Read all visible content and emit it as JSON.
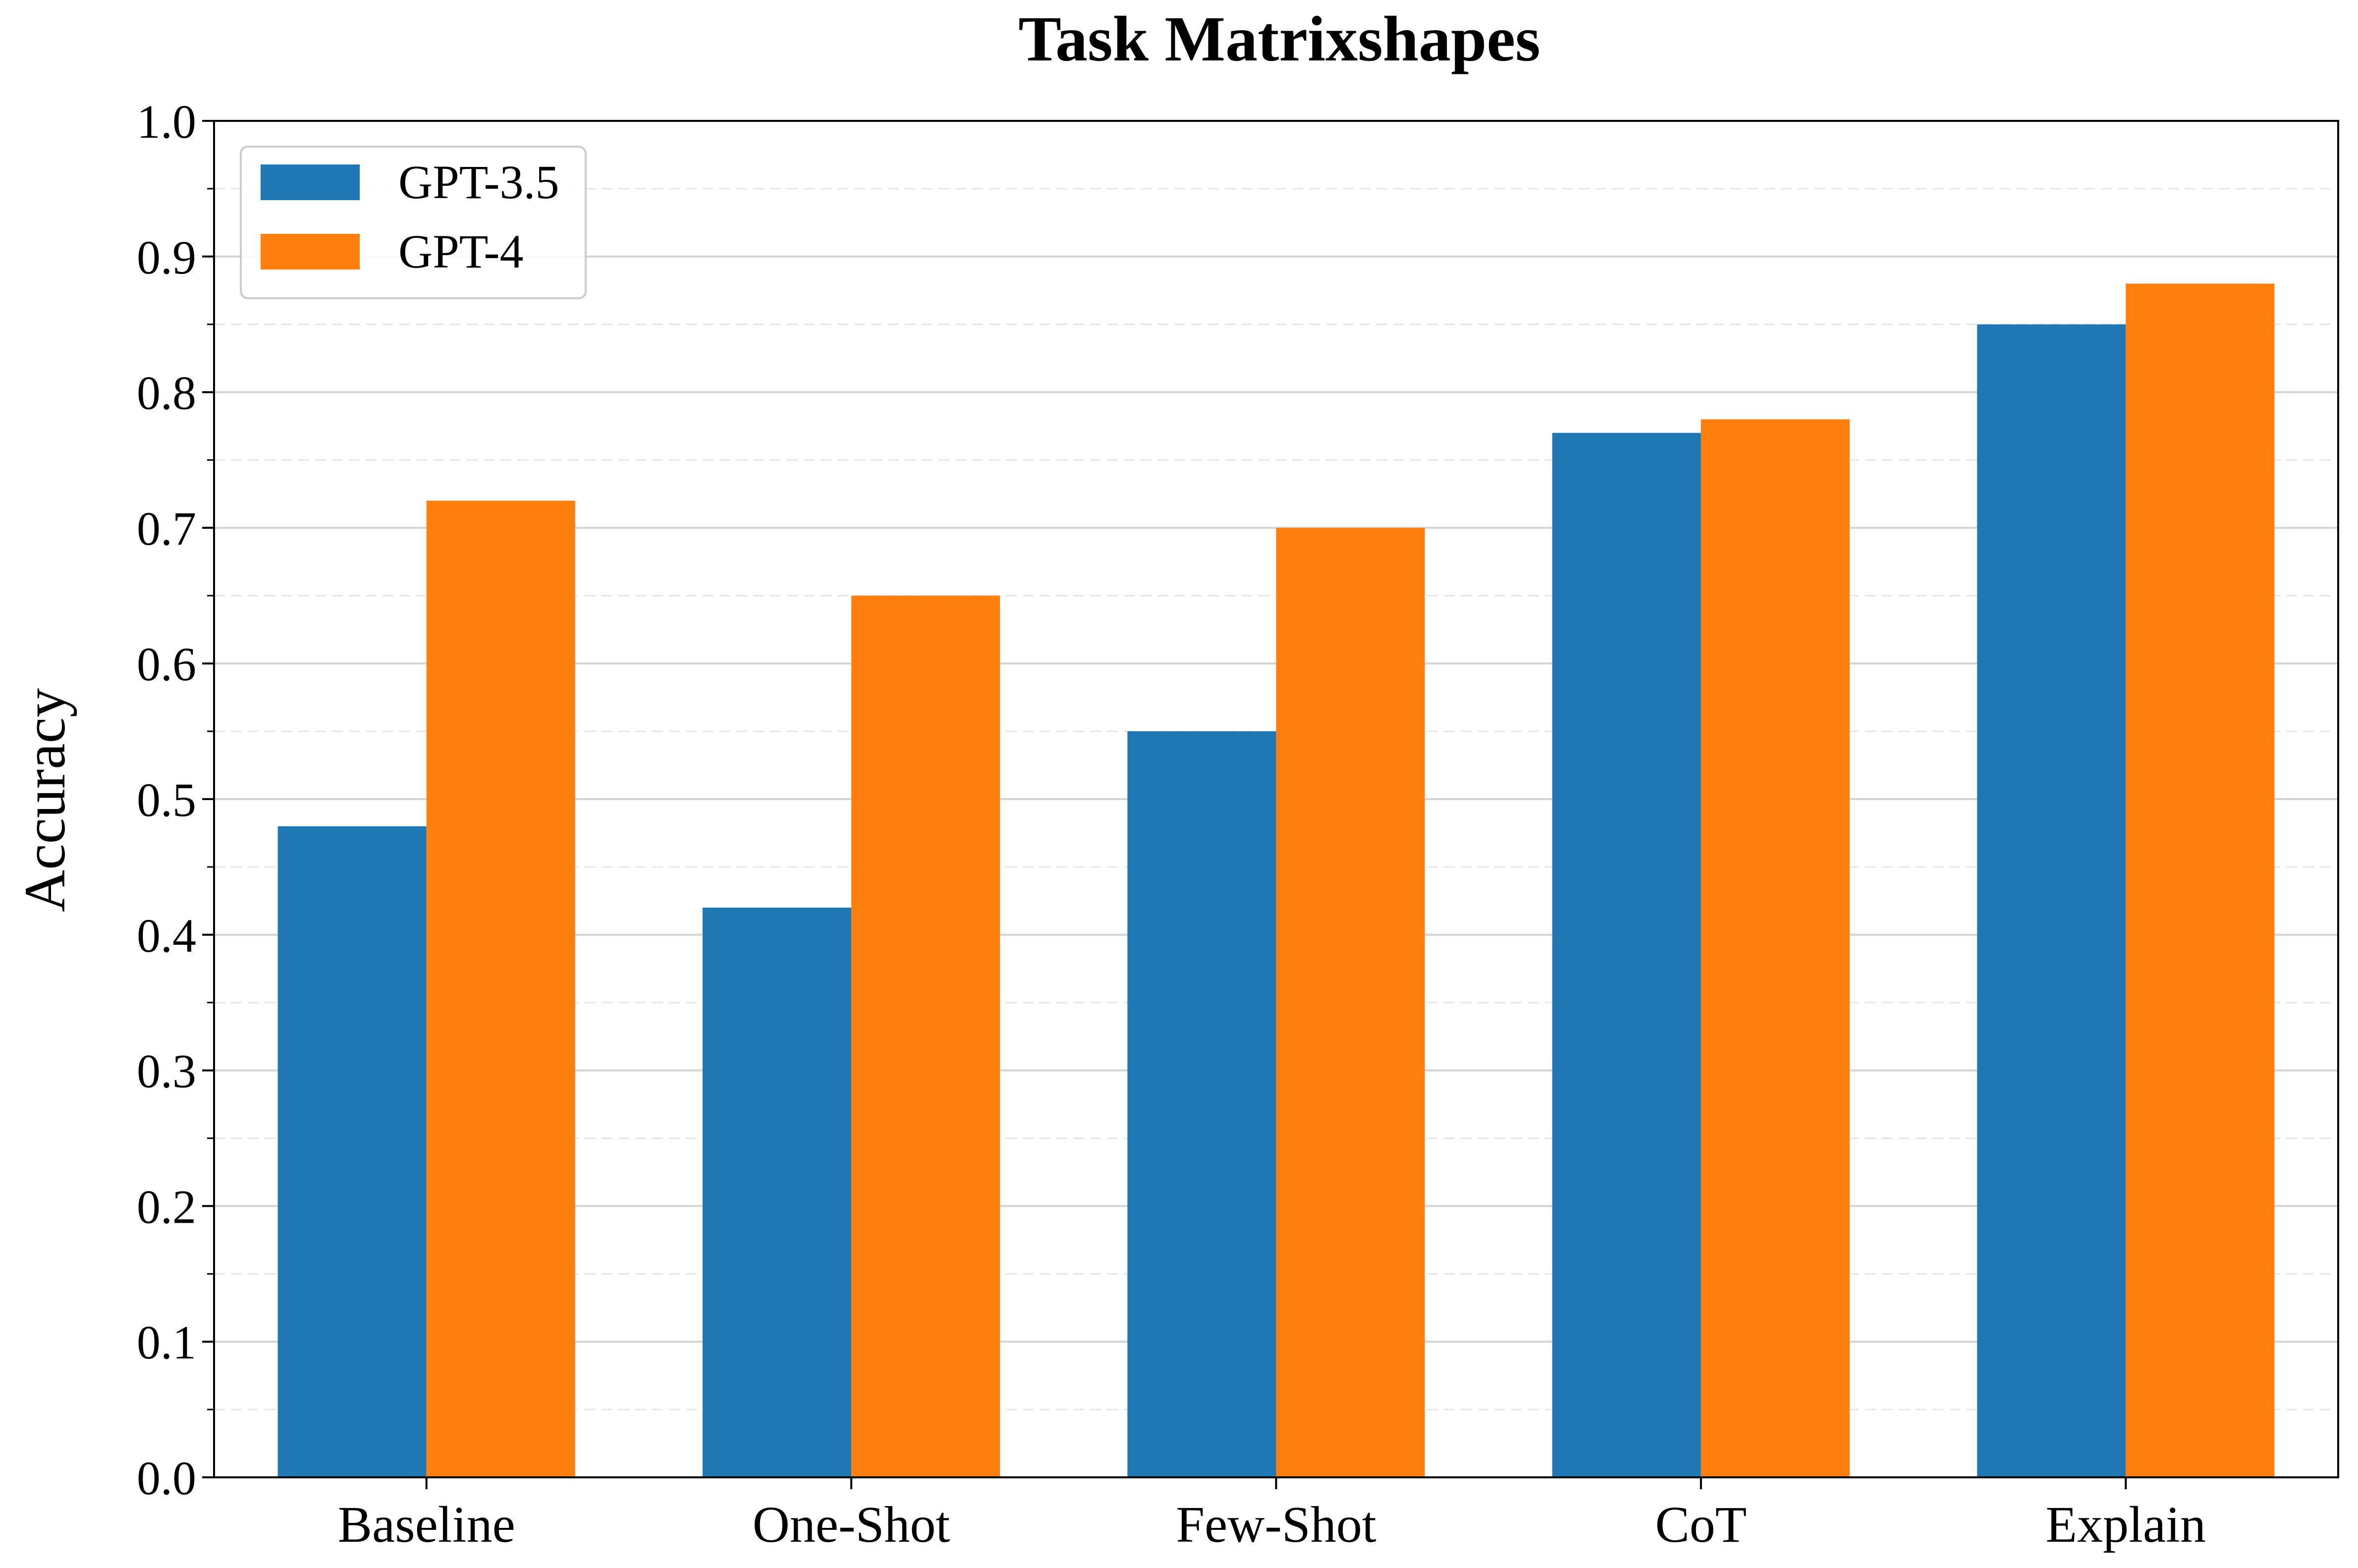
{
  "chart_data": {
    "type": "bar",
    "title": "Task Matrixshapes",
    "xlabel": "",
    "ylabel": "Accuracy",
    "categories": [
      "Baseline",
      "One-Shot",
      "Few-Shot",
      "CoT",
      "Explain"
    ],
    "series": [
      {
        "name": "GPT-3.5",
        "color": "#1f77b4",
        "values": [
          0.48,
          0.42,
          0.55,
          0.77,
          0.85
        ]
      },
      {
        "name": "GPT-4",
        "color": "#ff7f0e",
        "values": [
          0.72,
          0.65,
          0.7,
          0.78,
          0.88
        ]
      }
    ],
    "ylim": [
      0.0,
      1.0
    ],
    "yticks": [
      "0.0",
      "0.1",
      "0.2",
      "0.3",
      "0.4",
      "0.5",
      "0.6",
      "0.7",
      "0.8",
      "0.9",
      "1.0"
    ],
    "grid": "horizontal major solid, minor dashed",
    "legend_position": "top-left"
  }
}
